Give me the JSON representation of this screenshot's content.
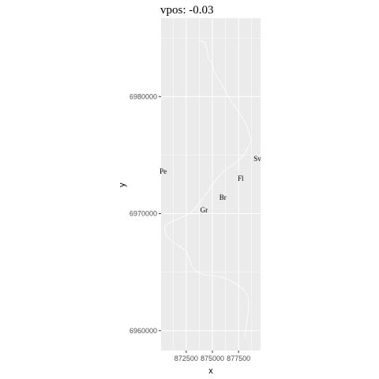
{
  "chart_data": {
    "type": "line",
    "title": "vpos: -0.03",
    "xlabel": "x",
    "ylabel": "y",
    "xlim": [
      870100,
      879600
    ],
    "ylim": [
      6958300,
      6986700
    ],
    "x_ticks": [
      {
        "value": 872500,
        "label": "872500"
      },
      {
        "value": 875000,
        "label": "875000"
      },
      {
        "value": 877500,
        "label": "877500"
      }
    ],
    "y_ticks": [
      {
        "value": 6960000,
        "label": "6960000"
      },
      {
        "value": 6970000,
        "label": "6970000"
      },
      {
        "value": 6980000,
        "label": "6980000"
      }
    ],
    "grid": true,
    "background_color": "#ebebeb",
    "grid_color": "#ffffff",
    "line_color": "#ffffff",
    "series": [
      {
        "points": [
          [
            873800,
            6984800
          ],
          [
            874300,
            6984600
          ],
          [
            874500,
            6984000
          ],
          [
            874600,
            6983300
          ],
          [
            875000,
            6982800
          ],
          [
            875200,
            6982100
          ],
          [
            875500,
            6981600
          ],
          [
            875900,
            6981000
          ],
          [
            876300,
            6980400
          ],
          [
            876700,
            6979700
          ],
          [
            877200,
            6979100
          ],
          [
            877700,
            6978400
          ],
          [
            878200,
            6977700
          ],
          [
            878500,
            6976900
          ],
          [
            878700,
            6976200
          ],
          [
            878400,
            6975600
          ],
          [
            877900,
            6974900
          ],
          [
            877300,
            6974400
          ],
          [
            876500,
            6973900
          ],
          [
            875700,
            6973300
          ],
          [
            875100,
            6972600
          ],
          [
            874600,
            6971900
          ],
          [
            874000,
            6971200
          ],
          [
            873500,
            6970600
          ],
          [
            873000,
            6970100
          ],
          [
            872400,
            6969800
          ],
          [
            871600,
            6969500
          ],
          [
            870800,
            6969200
          ],
          [
            870400,
            6968800
          ],
          [
            870600,
            6968100
          ],
          [
            871200,
            6967600
          ],
          [
            871900,
            6967200
          ],
          [
            872500,
            6966800
          ],
          [
            872800,
            6966200
          ],
          [
            873000,
            6965600
          ],
          [
            873400,
            6965100
          ],
          [
            874100,
            6964800
          ],
          [
            875000,
            6964700
          ],
          [
            875900,
            6964600
          ],
          [
            876700,
            6964300
          ],
          [
            877400,
            6963900
          ],
          [
            878000,
            6963500
          ],
          [
            878400,
            6962900
          ],
          [
            878500,
            6962200
          ],
          [
            878400,
            6961500
          ],
          [
            878300,
            6960800
          ],
          [
            878200,
            6960100
          ],
          [
            878100,
            6959400
          ]
        ]
      }
    ],
    "labels": [
      {
        "text": "Gr",
        "x": 874200,
        "y": 6970100
      },
      {
        "text": "Br",
        "x": 876000,
        "y": 6971200
      },
      {
        "text": "Fl",
        "x": 877700,
        "y": 6972800
      },
      {
        "text": "Sv",
        "x": 879300,
        "y": 6974500
      },
      {
        "text": "Pe",
        "x": 870300,
        "y": 6973400
      }
    ]
  }
}
